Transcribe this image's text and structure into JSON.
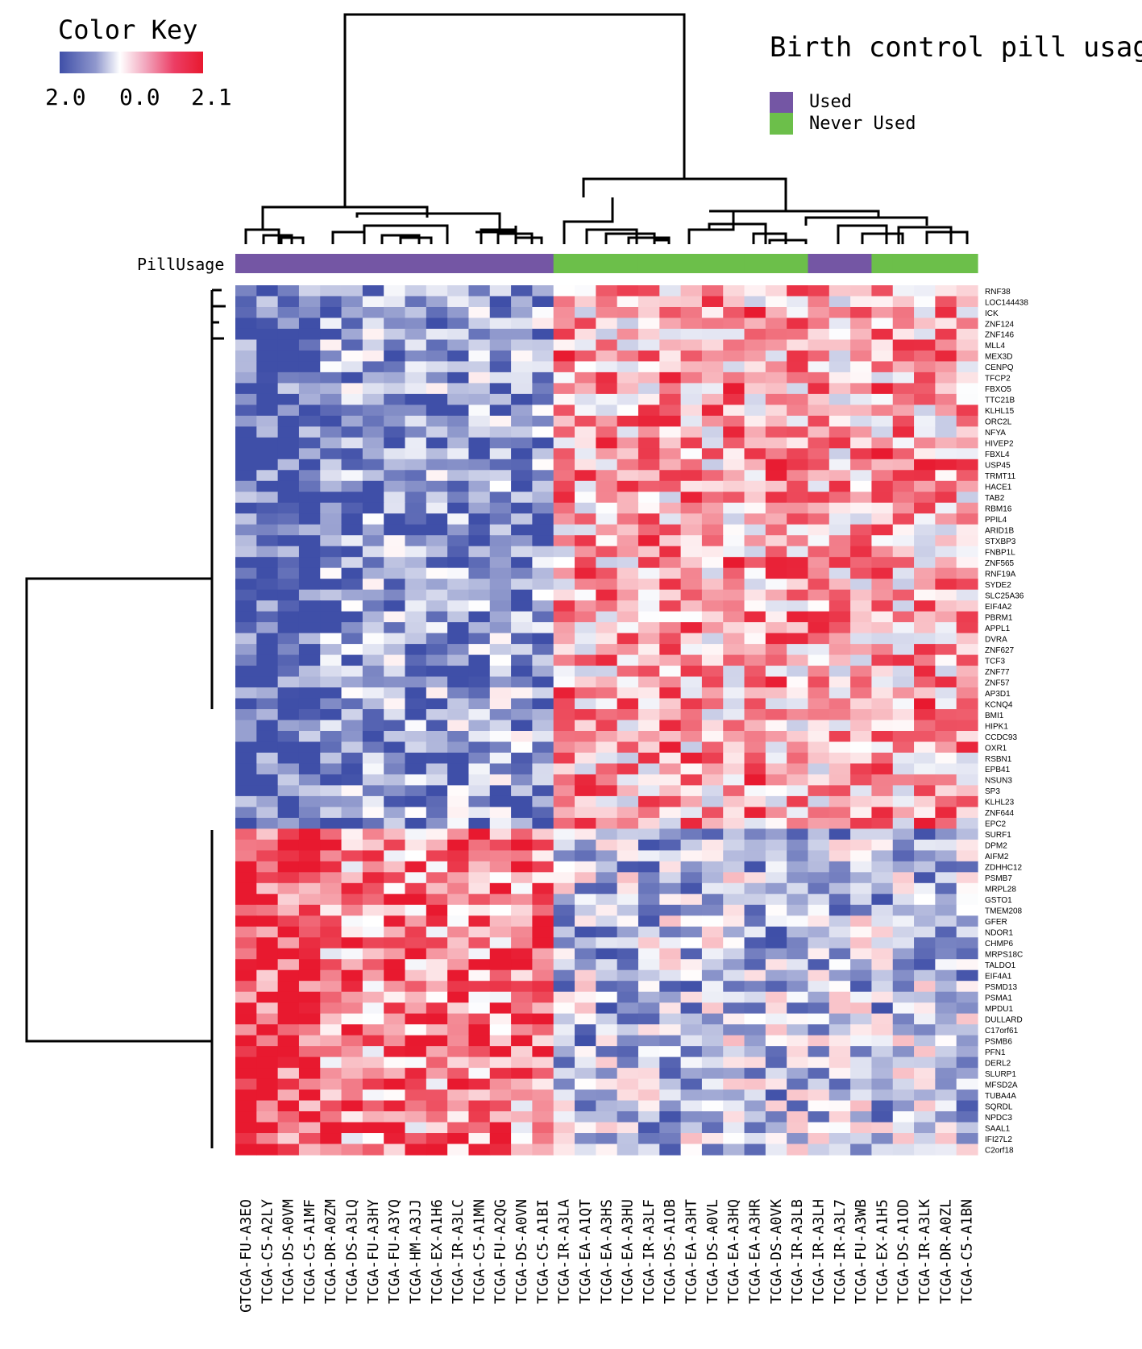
{
  "chart_data": {
    "type": "heatmap",
    "title": "",
    "color_key": {
      "title": "Color Key",
      "ticks": [
        "2.0",
        "0.0",
        "2.1"
      ],
      "colors": [
        "#3f4fa8",
        "#ffffff",
        "#e8192f"
      ]
    },
    "legend": {
      "title": "Birth control pill usage",
      "entries": [
        {
          "label": "Used",
          "color": "#7456a4"
        },
        {
          "label": "Never Used",
          "color": "#6cbf4a"
        }
      ]
    },
    "annotation_label": "PillUsage",
    "samples": [
      "GTCGA-FU-A3EO",
      "TCGA-C5-A2LY",
      "TCGA-DS-A0VM",
      "TCGA-C5-A1MF",
      "TCGA-DR-A0ZM",
      "TCGA-DS-A3LQ",
      "TCGA-FU-A3HY",
      "TCGA-FU-A3YQ",
      "TCGA-HM-A3JJ",
      "TCGA-EX-A1H6",
      "TCGA-IR-A3LC",
      "TCGA-C5-A1MN",
      "TCGA-FU-A2QG",
      "TCGA-DS-A0VN",
      "TCGA-C5-A1BI",
      "TCGA-IR-A3LA",
      "TCGA-EA-A1QT",
      "TCGA-EA-A3HS",
      "TCGA-EA-A3HU",
      "TCGA-IR-A3LF",
      "TCGA-DS-A1OB",
      "TCGA-EA-A3HT",
      "TCGA-DS-A0VL",
      "TCGA-EA-A3HQ",
      "TCGA-EA-A3HR",
      "TCGA-DS-A0VK",
      "TCGA-IR-A3LB",
      "TCGA-IR-A3LH",
      "TCGA-IR-A3L7",
      "TCGA-FU-A3WB",
      "TCGA-EX-A1H5",
      "TCGA-DS-A1OD",
      "TCGA-IR-A3LK",
      "TCGA-DR-A0ZL",
      "TCGA-C5-A1BN"
    ],
    "pill_usage": [
      "Used",
      "Used",
      "Used",
      "Used",
      "Used",
      "Used",
      "Used",
      "Used",
      "Used",
      "Used",
      "Used",
      "Used",
      "Used",
      "Used",
      "Used",
      "Never Used",
      "Never Used",
      "Never Used",
      "Never Used",
      "Never Used",
      "Never Used",
      "Never Used",
      "Never Used",
      "Never Used",
      "Never Used",
      "Never Used",
      "Never Used",
      "Used",
      "Used",
      "Used",
      "Never Used",
      "Never Used",
      "Never Used",
      "Never Used",
      "Never Used"
    ],
    "genes": [
      "RNF38",
      "LOC144438",
      "ICK",
      "ZNF124",
      "ZNF146",
      "MLL4",
      "MEX3D",
      "CENPQ",
      "TFCP2",
      "FBXO5",
      "TTC21B",
      "KLHL15",
      "ORC2L",
      "NFYA",
      "HIVEP2",
      "FBXL4",
      "USP45",
      "TRMT11",
      "HACE1",
      "TAB2",
      "RBM16",
      "PPIL4",
      "ARID1B",
      "STXBP3",
      "FNBP1L",
      "ZNF565",
      "RNF19A",
      "SYDE2",
      "SLC25A36",
      "EIF4A2",
      "PBRM1",
      "APPL1",
      "DVRA",
      "ZNF627",
      "TCF3",
      "ZNF77",
      "ZNF57",
      "AP3D1",
      "KCNQ4",
      "BMI1",
      "HIPK1",
      "CCDC93",
      "OXR1",
      "RSBN1",
      "EPB41",
      "NSUN3",
      "SP3",
      "KLHL23",
      "ZNF644",
      "EPC2",
      "SURF1",
      "DPM2",
      "AIFM2",
      "ZDHHC12",
      "PSMB7",
      "MRPL28",
      "GSTO1",
      "TMEM208",
      "GFER",
      "NDOR1",
      "CHMP6",
      "MRPS18C",
      "TALDO1",
      "EIF4A1",
      "PSMD13",
      "PSMA1",
      "MPDU1",
      "DULLARD",
      "C17orf61",
      "PSMB6",
      "PFN1",
      "DERL2",
      "SLURP1",
      "MFSD2A",
      "TUBA4A",
      "SQRDL",
      "NPDC3",
      "SAAL1",
      "IFI27L2",
      "C2orf18"
    ]
  }
}
